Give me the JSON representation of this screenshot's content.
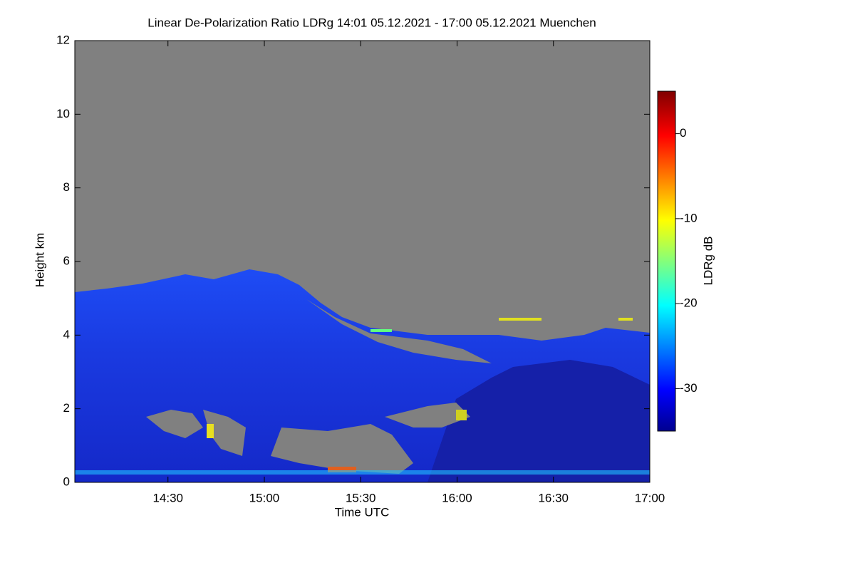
{
  "chart_data": {
    "type": "heatmap",
    "title": "Linear De-Polarization Ratio LDRg   14:01 05.12.2021 - 17:00 05.12.2021 Muenchen",
    "xlabel": "Time UTC",
    "ylabel": "Height km",
    "xlim": [
      14.0167,
      17.0
    ],
    "xticks": [
      {
        "value": 14.5,
        "label": "14:30"
      },
      {
        "value": 15.0,
        "label": "15:00"
      },
      {
        "value": 15.5,
        "label": "15:30"
      },
      {
        "value": 16.0,
        "label": "16:00"
      },
      {
        "value": 16.5,
        "label": "16:30"
      },
      {
        "value": 17.0,
        "label": "17:00"
      }
    ],
    "ylim": [
      0,
      12
    ],
    "yticks": [
      0,
      2,
      4,
      6,
      8,
      10,
      12
    ],
    "colormap": "jet",
    "colorbar": {
      "label": "LDRg dB",
      "lim": [
        -35,
        5
      ],
      "ticks": [
        0,
        -10,
        -20,
        -30
      ]
    }
  }
}
